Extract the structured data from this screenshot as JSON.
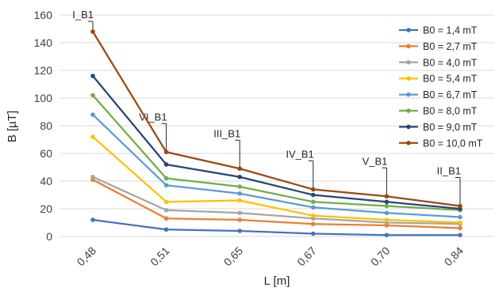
{
  "chart_data": {
    "type": "line",
    "xlabel": "L [m]",
    "ylabel": "B [µT]",
    "ylim": [
      0,
      160
    ],
    "yticks": [
      "0",
      "20",
      "40",
      "60",
      "80",
      "100",
      "120",
      "140",
      "160"
    ],
    "categories": [
      "0,48",
      "0,51",
      "0,65",
      "0,67",
      "0,70",
      "0,84"
    ],
    "grid": true,
    "legend_position": "right",
    "series": [
      {
        "name": "B0 = 1,4 mT",
        "color": "#4472c4",
        "values": [
          12,
          5,
          4,
          2,
          1,
          1
        ]
      },
      {
        "name": "B0 = 2,7 mT",
        "color": "#ed7d31",
        "values": [
          41,
          13,
          12,
          9,
          8,
          6
        ]
      },
      {
        "name": "B0 = 4,0 mT",
        "color": "#a5a5a5",
        "values": [
          43,
          19,
          17,
          13,
          10,
          9
        ]
      },
      {
        "name": "B0 = 5,4 mT",
        "color": "#ffc000",
        "values": [
          72,
          25,
          26,
          15,
          12,
          10
        ]
      },
      {
        "name": "B0 = 6,7 mT",
        "color": "#5b9bd5",
        "values": [
          88,
          37,
          31,
          21,
          17,
          14
        ]
      },
      {
        "name": "B0 = 8,0 mT",
        "color": "#70ad47",
        "values": [
          102,
          42,
          36,
          25,
          22,
          19
        ]
      },
      {
        "name": "B0 = 9,0 mT",
        "color": "#264478",
        "values": [
          116,
          52,
          43,
          30,
          25,
          20
        ]
      },
      {
        "name": "B0 = 10,0 mT",
        "color": "#9e480e",
        "values": [
          148,
          61,
          49,
          34,
          29,
          22
        ]
      }
    ],
    "annotations": [
      {
        "text": "I_B1",
        "category_index": 0
      },
      {
        "text": "VI_B1",
        "category_index": 1
      },
      {
        "text": "III_B1",
        "category_index": 2
      },
      {
        "text": "IV_B1",
        "category_index": 3
      },
      {
        "text": "V_B1",
        "category_index": 4
      },
      {
        "text": "II_B1",
        "category_index": 5
      }
    ]
  }
}
